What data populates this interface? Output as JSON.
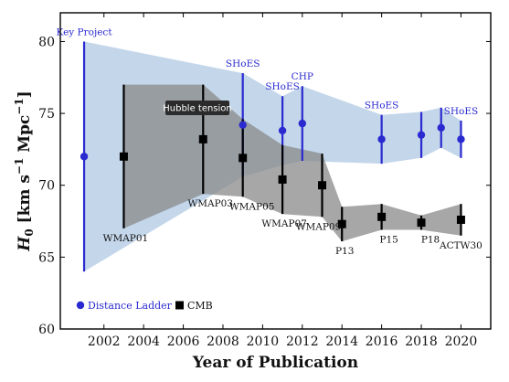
{
  "chart_data": {
    "type": "scatter",
    "title": "",
    "xlabel": "Year of Publication",
    "ylabel": "H_0 [km s^-1 Mpc^-1]",
    "ylabel_parts": {
      "base": "H",
      "sub": "0",
      "unit_open": " [km s",
      "exp1": "−1",
      "unit_mid": " Mpc",
      "exp2": "−1",
      "unit_close": "]"
    },
    "xlim": [
      1999.8,
      2021.5
    ],
    "ylim": [
      60,
      82
    ],
    "xticks": [
      2002,
      2004,
      2006,
      2008,
      2010,
      2012,
      2014,
      2016,
      2018,
      2020
    ],
    "yticks": [
      60,
      65,
      70,
      75,
      80
    ],
    "legend_placement": "bottom-left",
    "series": [
      {
        "name": "Distance Ladder",
        "color": "#2a2ad0",
        "marker": "circle",
        "points": [
          {
            "label": "Key Project",
            "x": 2001,
            "y": 72.0,
            "lo": 64.0,
            "hi": 80.0
          },
          {
            "label": "SHoES",
            "x": 2009,
            "y": 74.2,
            "lo": 70.6,
            "hi": 77.8
          },
          {
            "label": "SHoES",
            "x": 2011,
            "y": 73.8,
            "lo": 71.4,
            "hi": 76.2
          },
          {
            "label": "CHP",
            "x": 2012,
            "y": 74.3,
            "lo": 71.7,
            "hi": 76.9
          },
          {
            "label": "SHoES",
            "x": 2016,
            "y": 73.2,
            "lo": 71.5,
            "hi": 74.9
          },
          {
            "label": "",
            "x": 2018,
            "y": 73.5,
            "lo": 71.9,
            "hi": 75.1
          },
          {
            "label": "",
            "x": 2019,
            "y": 74.0,
            "lo": 72.6,
            "hi": 75.4
          },
          {
            "label": "SHoES",
            "x": 2020,
            "y": 73.2,
            "lo": 71.9,
            "hi": 74.5
          }
        ]
      },
      {
        "name": "CMB",
        "color": "#000000",
        "marker": "square",
        "points": [
          {
            "label": "WMAP01",
            "x": 2003,
            "y": 72.0,
            "lo": 67.0,
            "hi": 77.0
          },
          {
            "label": "WMAP03",
            "x": 2007,
            "y": 73.2,
            "lo": 69.4,
            "hi": 77.0
          },
          {
            "label": "WMAP05",
            "x": 2009,
            "y": 71.9,
            "lo": 69.2,
            "hi": 74.6
          },
          {
            "label": "WMAP07",
            "x": 2011,
            "y": 70.4,
            "lo": 68.0,
            "hi": 72.8
          },
          {
            "label": "WMAP09",
            "x": 2013,
            "y": 70.0,
            "lo": 67.8,
            "hi": 72.2
          },
          {
            "label": "P13",
            "x": 2014,
            "y": 67.3,
            "lo": 66.1,
            "hi": 68.5
          },
          {
            "label": "P15",
            "x": 2016,
            "y": 67.8,
            "lo": 66.9,
            "hi": 68.7
          },
          {
            "label": "P18",
            "x": 2018,
            "y": 67.4,
            "lo": 66.9,
            "hi": 67.9
          },
          {
            "label": "ACTW30",
            "x": 2020,
            "y": 67.6,
            "lo": 66.5,
            "hi": 68.7
          }
        ]
      }
    ],
    "bands": {
      "distance_ladder": {
        "color": "#b9cfe6",
        "upper": [
          [
            2001,
            80.0
          ],
          [
            2009,
            77.8
          ],
          [
            2011,
            76.2
          ],
          [
            2012,
            76.9
          ],
          [
            2016,
            74.9
          ],
          [
            2018,
            75.1
          ],
          [
            2019,
            75.4
          ],
          [
            2020,
            74.5
          ]
        ],
        "lower": [
          [
            2001,
            64.0
          ],
          [
            2009,
            70.6
          ],
          [
            2011,
            71.4
          ],
          [
            2012,
            71.7
          ],
          [
            2016,
            71.5
          ],
          [
            2018,
            71.9
          ],
          [
            2019,
            72.6
          ],
          [
            2020,
            71.9
          ]
        ]
      },
      "cmb": {
        "color": "#8a8a8a",
        "upper": [
          [
            2003,
            77.0
          ],
          [
            2007,
            77.0
          ],
          [
            2009,
            74.6
          ],
          [
            2011,
            72.8
          ],
          [
            2013,
            72.2
          ],
          [
            2014,
            68.5
          ],
          [
            2016,
            68.7
          ],
          [
            2018,
            67.9
          ],
          [
            2020,
            68.7
          ]
        ],
        "lower": [
          [
            2003,
            67.0
          ],
          [
            2007,
            69.4
          ],
          [
            2009,
            69.2
          ],
          [
            2011,
            68.0
          ],
          [
            2013,
            67.8
          ],
          [
            2014,
            66.1
          ],
          [
            2016,
            66.9
          ],
          [
            2018,
            66.9
          ],
          [
            2020,
            66.5
          ]
        ]
      }
    }
  },
  "tooltip": {
    "text": "Hubble tension"
  }
}
